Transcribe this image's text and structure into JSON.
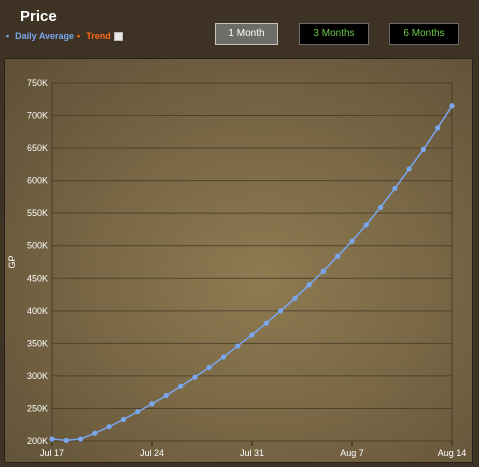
{
  "header": {
    "title": "Price",
    "legend": {
      "daily_average": "Daily Average",
      "trend": "Trend"
    },
    "buttons": {
      "one_month": "1 Month",
      "three_months": "3 Months",
      "six_months": "6 Months"
    }
  },
  "colors": {
    "series": "#7aa7f0",
    "trend": "#ff6a1a",
    "active_button_bg": "#6e6c68",
    "inactive_button_text": "#6ecb4a"
  },
  "chart_data": {
    "type": "line",
    "title": "Price",
    "ylabel": "GP",
    "xlabel": "",
    "ylim": [
      200000,
      750000
    ],
    "yticks": [
      200000,
      250000,
      300000,
      350000,
      400000,
      450000,
      500000,
      550000,
      600000,
      650000,
      700000,
      750000
    ],
    "ytick_labels": [
      "200K",
      "250K",
      "300K",
      "350K",
      "400K",
      "450K",
      "500K",
      "550K",
      "600K",
      "650K",
      "700K",
      "750K"
    ],
    "xlim": [
      0,
      28
    ],
    "xticks": [
      0,
      7,
      14,
      21,
      28
    ],
    "xtick_labels": [
      "Jul 17",
      "Jul 24",
      "Jul 31",
      "Aug 7",
      "Aug 14"
    ],
    "grid": true,
    "series": [
      {
        "name": "Daily Average",
        "x": [
          0,
          1,
          2,
          3,
          4,
          5,
          6,
          7,
          8,
          9,
          10,
          11,
          12,
          13,
          14,
          15,
          16,
          17,
          18,
          19,
          20,
          21,
          22,
          23,
          24,
          25,
          26,
          27,
          28
        ],
        "values": [
          203000,
          201000,
          203000,
          212000,
          222000,
          233000,
          245000,
          257000,
          270000,
          284000,
          298000,
          313000,
          329000,
          346000,
          363000,
          381000,
          400000,
          419000,
          440000,
          461000,
          484000,
          507000,
          532000,
          559000,
          588000,
          618000,
          648000,
          681000,
          715000
        ]
      }
    ]
  }
}
